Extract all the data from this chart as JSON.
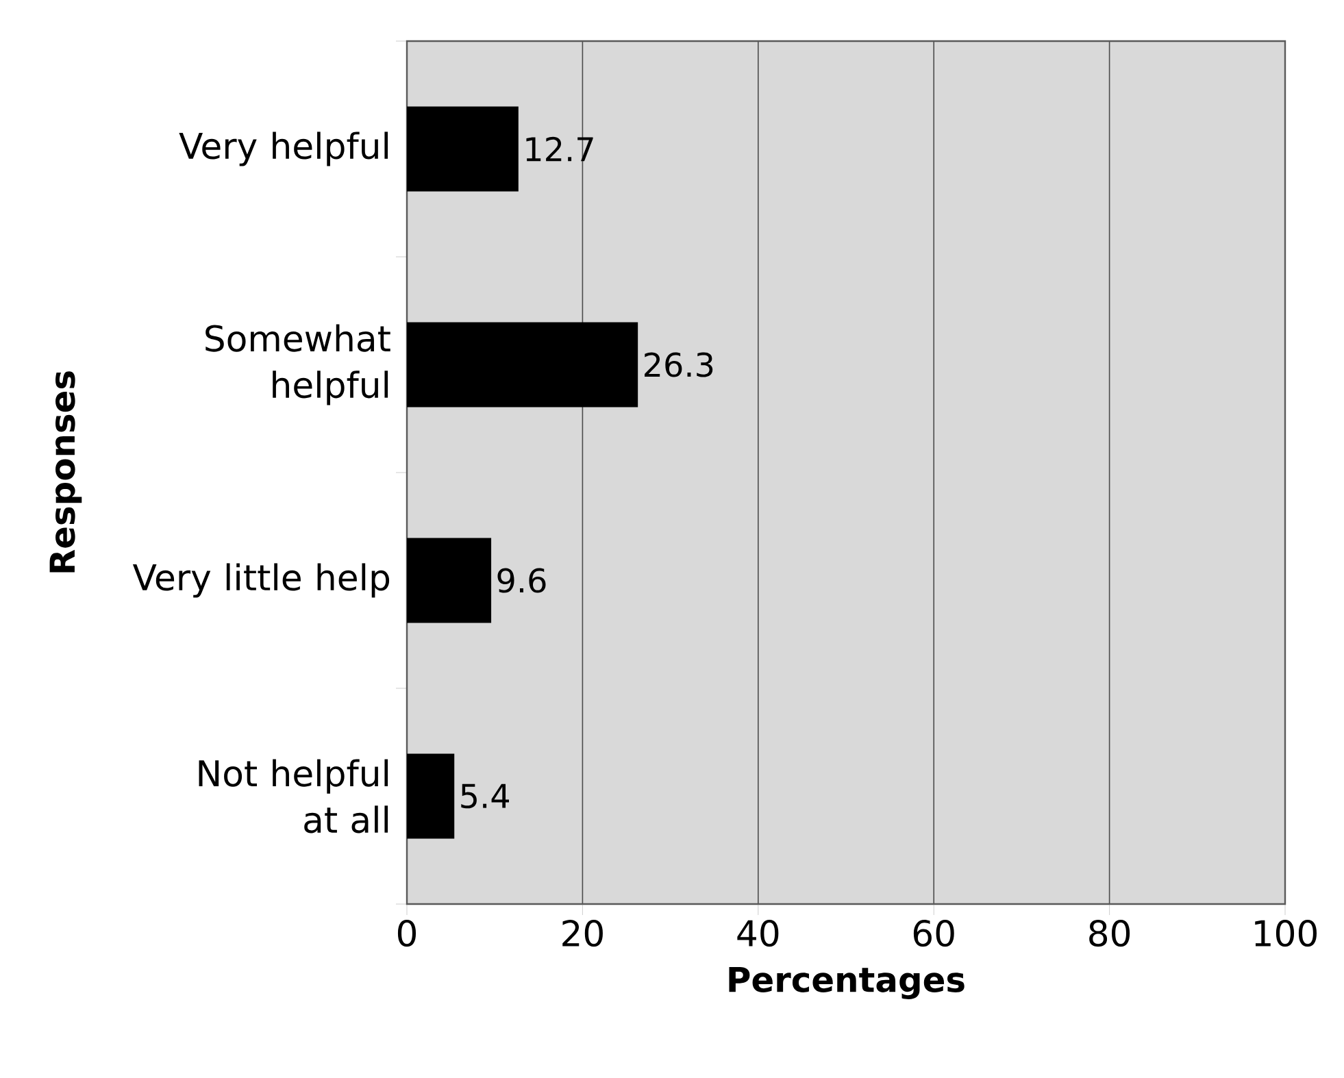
{
  "chart_data": {
    "type": "bar",
    "orientation": "horizontal",
    "xlabel": "Percentages",
    "ylabel": "Responses",
    "categories": [
      "Very helpful",
      "Somewhat helpful",
      "Very little help",
      "Not helpful at all"
    ],
    "values": [
      12.7,
      26.3,
      9.6,
      5.4
    ],
    "color": "#000000",
    "xlim": [
      0,
      100
    ],
    "xticks": [
      0,
      20,
      40,
      60,
      80,
      100
    ],
    "grid": "x",
    "data_labels": true
  }
}
